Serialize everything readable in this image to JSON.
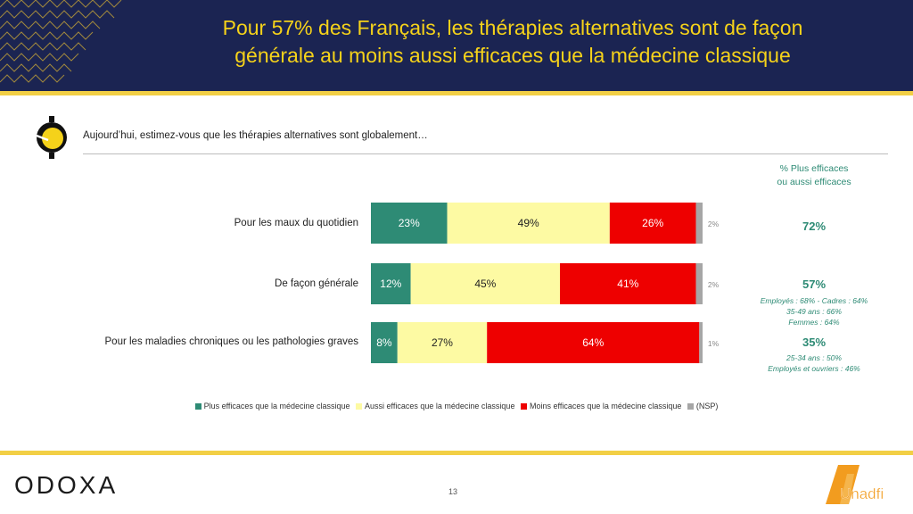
{
  "header": {
    "title_line1": "Pour 57% des Français, les thérapies alternatives sont de façon",
    "title_line2": "générale au moins aussi efficaces que la médecine classique"
  },
  "question": "Aujourd’hui, estimez-vous que les thérapies alternatives sont globalement…",
  "side_header": {
    "line1": "% Plus efficaces",
    "line2": "ou aussi efficaces"
  },
  "colors": {
    "navy": "#1b2452",
    "title_yellow": "#f5d21a",
    "rule_yellow": "#f2cf45",
    "teal": "#2e8b75",
    "light_yellow": "#fdfaa3",
    "red": "#ee0000",
    "gray": "#a6a6a6"
  },
  "chart_data": {
    "type": "bar",
    "orientation": "horizontal",
    "stacked": true,
    "categories": [
      "Pour les maux du quotidien",
      "De façon générale",
      "Pour les maladies chroniques ou les pathologies graves"
    ],
    "series": [
      {
        "name": "Plus efficaces que la médecine classique",
        "values": [
          23,
          12,
          8
        ],
        "color": "#2e8b75",
        "labels": [
          "23%",
          "12%",
          "8%"
        ]
      },
      {
        "name": "Aussi efficaces que la médecine classique",
        "values": [
          49,
          45,
          27
        ],
        "color": "#fdfaa3",
        "labels": [
          "49%",
          "45%",
          "27%"
        ]
      },
      {
        "name": "Moins efficaces que la médecine classique",
        "values": [
          26,
          41,
          64
        ],
        "color": "#ee0000",
        "labels": [
          "26%",
          "41%",
          "64%"
        ]
      },
      {
        "name": "(NSP)",
        "values": [
          2,
          2,
          1
        ],
        "color": "#a6a6a6",
        "labels": [
          "2%",
          "2%",
          "1%"
        ]
      }
    ],
    "xlim": [
      0,
      100
    ],
    "legend_position": "bottom"
  },
  "side_values": [
    {
      "value": "72%",
      "notes": []
    },
    {
      "value": "57%",
      "notes": [
        "Employés : 68% - Cadres : 64%",
        "35-49 ans : 66%",
        "Femmes : 64%"
      ]
    },
    {
      "value": "35%",
      "notes": [
        "25-34 ans : 50%",
        "Employés et ouvriers : 46%"
      ]
    }
  ],
  "footer": {
    "logo_left": "ODOXA",
    "page_number": "13",
    "logo_right": "Unadfi"
  }
}
